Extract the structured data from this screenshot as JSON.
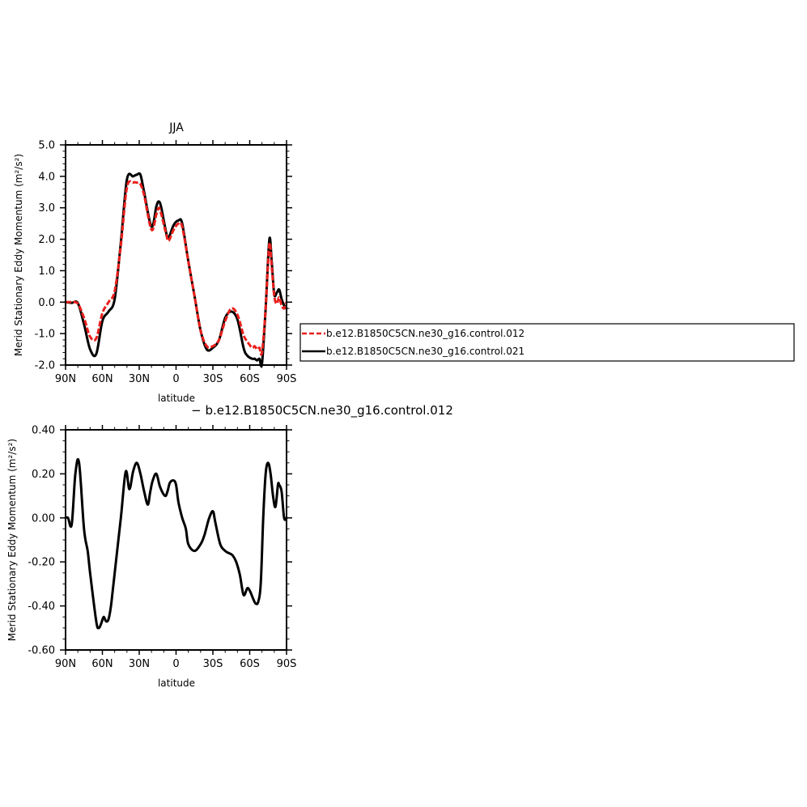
{
  "chart_data": [
    {
      "type": "line",
      "title": "JJA",
      "xlabel": "latitude",
      "ylabel": "Merid Stationary Eddy Momentum (m²/s²)",
      "x_ticks": [
        "90N",
        "60N",
        "30N",
        "0",
        "30S",
        "60S",
        "90S"
      ],
      "y_ticks": [
        "5.0",
        "4.0",
        "3.0",
        "2.0",
        "1.0",
        "0.0",
        "-1.0",
        "-2.0"
      ],
      "ylim": [
        -2.0,
        5.0
      ],
      "legend_position": "right",
      "series": [
        {
          "name": "b.e12.B1850C5CN.ne30_g16.control.012",
          "color": "#e8201c",
          "dash": "dashed",
          "x": [
            90,
            85,
            80,
            75,
            70,
            65,
            60,
            55,
            50,
            45,
            40,
            35,
            32,
            29,
            26,
            20,
            16,
            14,
            12,
            8,
            6,
            2,
            -2,
            -5,
            -10,
            -15,
            -20,
            -25,
            -30,
            -35,
            -40,
            -45,
            -50,
            -55,
            -58,
            -62,
            -64,
            -66,
            -68,
            -70,
            -73,
            -76,
            -78,
            -80,
            -82,
            -84,
            -86,
            -88,
            -90
          ],
          "y": [
            0.0,
            0.0,
            -0.05,
            -0.5,
            -1.1,
            -1.15,
            -0.35,
            0.0,
            0.35,
            1.8,
            3.65,
            3.8,
            3.8,
            3.75,
            3.4,
            2.3,
            2.8,
            3.0,
            2.8,
            2.15,
            1.95,
            2.3,
            2.5,
            2.4,
            1.3,
            0.2,
            -0.9,
            -1.4,
            -1.4,
            -1.2,
            -0.6,
            -0.2,
            -0.4,
            -1.05,
            -1.25,
            -1.45,
            -1.4,
            -1.5,
            -1.45,
            -1.6,
            -0.2,
            1.85,
            1.1,
            0.2,
            -0.05,
            0.15,
            -0.1,
            -0.2,
            0.0
          ]
        },
        {
          "name": "b.e12.B1850C5CN.ne30_g16.control.021",
          "color": "#000000",
          "dash": "solid",
          "x": [
            90,
            85,
            80,
            75,
            70,
            65,
            60,
            55,
            50,
            45,
            40,
            35,
            32,
            29,
            26,
            20,
            16,
            14,
            12,
            8,
            6,
            2,
            -2,
            -5,
            -10,
            -15,
            -20,
            -25,
            -30,
            -35,
            -40,
            -45,
            -50,
            -55,
            -58,
            -62,
            -64,
            -66,
            -68,
            -70,
            -73,
            -76,
            -78,
            -80,
            -82,
            -84,
            -86,
            -88,
            -90
          ],
          "y": [
            0.0,
            -0.02,
            -0.03,
            -0.7,
            -1.5,
            -1.65,
            -0.6,
            -0.3,
            0.1,
            1.9,
            3.9,
            4.0,
            4.05,
            4.05,
            3.5,
            2.4,
            3.05,
            3.2,
            3.0,
            2.2,
            2.05,
            2.45,
            2.6,
            2.5,
            1.3,
            0.2,
            -0.9,
            -1.5,
            -1.45,
            -1.2,
            -0.5,
            -0.3,
            -0.55,
            -1.45,
            -1.7,
            -1.8,
            -1.8,
            -1.85,
            -1.8,
            -1.95,
            -0.2,
            2.0,
            1.25,
            0.25,
            0.3,
            0.4,
            0.1,
            -0.1,
            -0.2
          ]
        }
      ]
    },
    {
      "type": "line",
      "title": "− b.e12.B1850C5CN.ne30_g16.control.012",
      "xlabel": "latitude",
      "ylabel": "Merid Stationary Eddy Momentum (m²/s²)",
      "x_ticks": [
        "90N",
        "60N",
        "30N",
        "0",
        "30S",
        "60S",
        "90S"
      ],
      "y_ticks": [
        "0.40",
        "0.20",
        "0.00",
        "-0.20",
        "-0.40",
        "-0.60"
      ],
      "ylim": [
        -0.6,
        0.4
      ],
      "series": [
        {
          "color": "#000000",
          "dash": "solid",
          "x": [
            90,
            88,
            85,
            82,
            79,
            75,
            72,
            70,
            65,
            63,
            61,
            59,
            57,
            55,
            53,
            51,
            45,
            41,
            38,
            35,
            32,
            29,
            26,
            23,
            21,
            19,
            16,
            13,
            9,
            7,
            5,
            2,
            0,
            -2,
            -5,
            -8,
            -10,
            -15,
            -20,
            -23,
            -25,
            -27,
            -30,
            -32,
            -36,
            -40,
            -43,
            -46,
            -49,
            -52,
            -55,
            -58,
            -60,
            -63,
            -65,
            -67,
            -69,
            -71,
            -73,
            -75,
            -77,
            -79,
            -81,
            -83,
            -84,
            -86,
            -88,
            -90
          ],
          "y": [
            0.0,
            0.0,
            -0.03,
            0.2,
            0.25,
            -0.05,
            -0.15,
            -0.25,
            -0.47,
            -0.5,
            -0.48,
            -0.45,
            -0.47,
            -0.46,
            -0.4,
            -0.3,
            0.0,
            0.21,
            0.13,
            0.21,
            0.25,
            0.2,
            0.12,
            0.06,
            0.12,
            0.17,
            0.2,
            0.14,
            0.1,
            0.12,
            0.16,
            0.17,
            0.15,
            0.07,
            0.0,
            -0.05,
            -0.12,
            -0.15,
            -0.12,
            -0.08,
            -0.04,
            0.0,
            0.03,
            -0.02,
            -0.12,
            -0.15,
            -0.16,
            -0.17,
            -0.2,
            -0.26,
            -0.35,
            -0.32,
            -0.33,
            -0.37,
            -0.39,
            -0.38,
            -0.3,
            0.0,
            0.2,
            0.25,
            0.2,
            0.1,
            0.05,
            0.15,
            0.15,
            0.12,
            0.0,
            0.0
          ]
        }
      ]
    }
  ]
}
